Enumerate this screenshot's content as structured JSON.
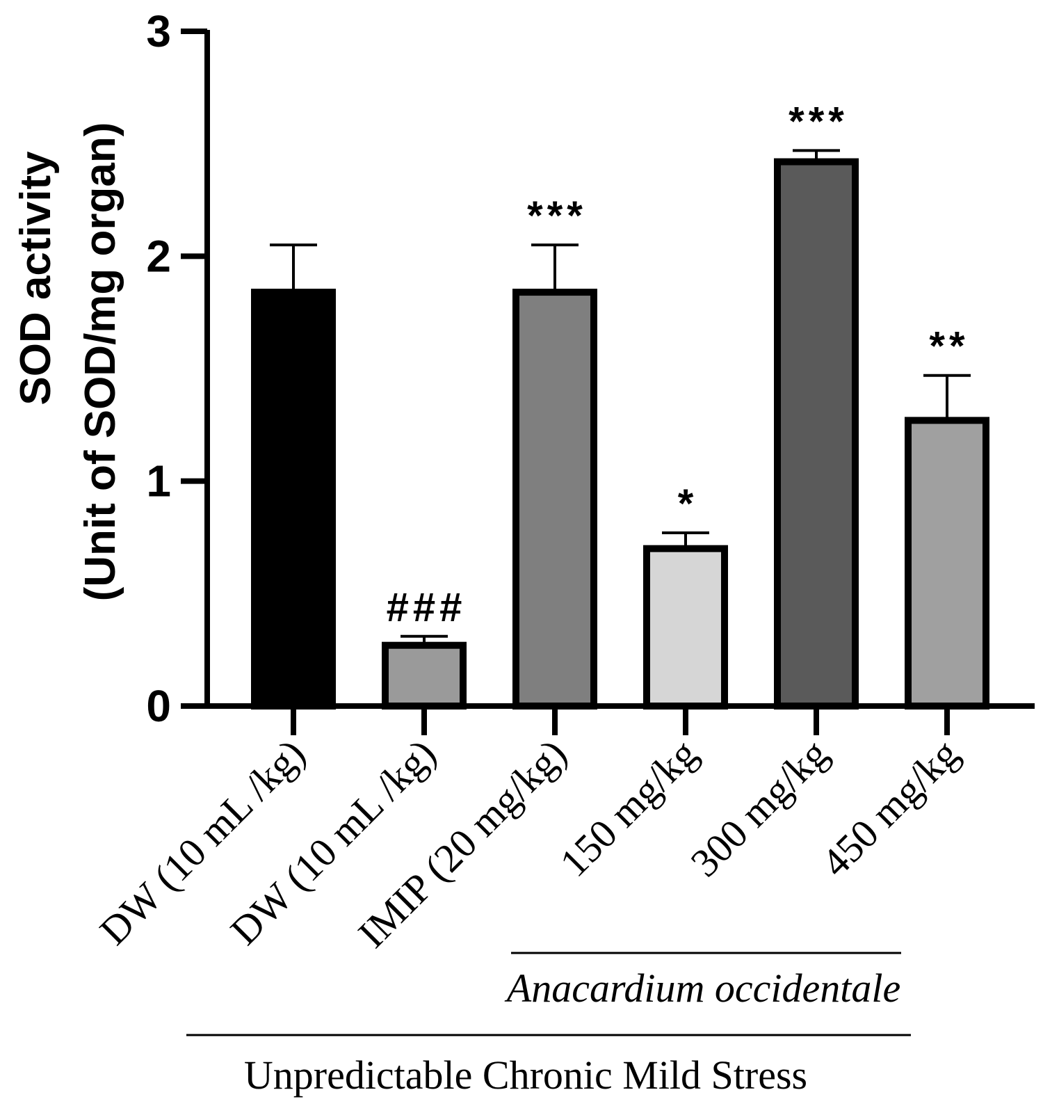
{
  "chart_data": {
    "type": "bar",
    "ylabel_line1": "SOD activity",
    "ylabel_line2": "(Unit of SOD/mg organ)",
    "ylim": [
      0,
      3
    ],
    "yticks": [
      "0",
      "1",
      "2",
      "3"
    ],
    "categories": [
      "DW (10 mL /kg)",
      "DW (10 mL /kg)",
      "IMIP (20 mg/kg)",
      "150 mg/kg",
      "300 mg/kg",
      "450 mg/kg"
    ],
    "values": [
      1.84,
      0.27,
      1.84,
      0.7,
      2.42,
      1.27
    ],
    "errors": [
      0.21,
      0.04,
      0.21,
      0.07,
      0.05,
      0.2
    ],
    "significance": [
      "",
      "###",
      "***",
      "*",
      "***",
      "**"
    ],
    "colors": [
      "#000000",
      "#9a9a9a",
      "#7f7f7f",
      "#d6d6d6",
      "#5a5a5a",
      "#a0a0a0"
    ],
    "group_labels": {
      "treatment": "Anacardium occidentale",
      "condition": "Unpredictable Chronic Mild Stress"
    }
  }
}
